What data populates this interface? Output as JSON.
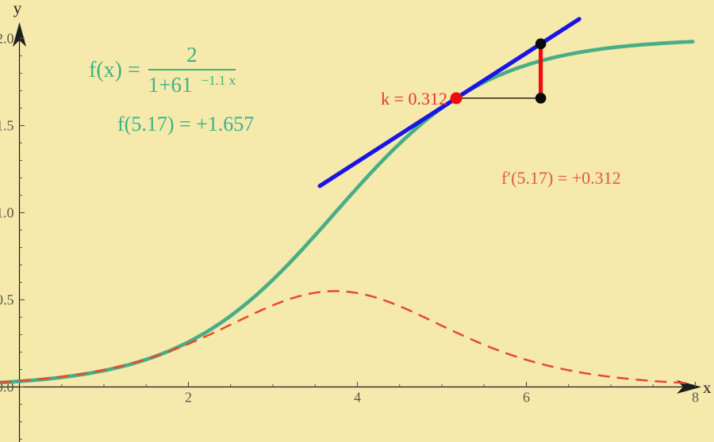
{
  "figure": {
    "background": "#f5e9ac",
    "axis_color": "#1d1d1d",
    "tick_label_color": "#59594e"
  },
  "chart_data": {
    "type": "line",
    "title": "",
    "xlabel": "x",
    "ylabel": "y",
    "xlim": [
      -0.23,
      8.22
    ],
    "ylim": [
      -0.32,
      2.08
    ],
    "grid": false,
    "legend": "none",
    "x_major_ticks": [
      2,
      4,
      6,
      8
    ],
    "x_major_tick_labels": [
      "2",
      "4",
      "6",
      "8"
    ],
    "x_minor_tick_step": 0.5,
    "y_major_ticks": [
      0,
      0.5,
      1,
      1.5,
      2
    ],
    "y_major_tick_labels": [
      "0.0",
      "0.5",
      "1.0",
      "1.5",
      "2.0"
    ],
    "y_minor_tick_step": 0.1,
    "series": [
      {
        "name": "logistic-function",
        "label": "f(x) = 2/(1+61^(-1.1 x))",
        "type": "logistic",
        "color": "#47ae87",
        "line_style": "solid",
        "line_width": 4.6,
        "params": {
          "L": 2,
          "k": 1.1,
          "x0": 3.737
        },
        "x_range": [
          -0.23,
          8.0
        ]
      },
      {
        "name": "derivative-curve",
        "label": "f'(x)",
        "type": "logistic-derivative",
        "color": "#e8492c",
        "line_style": "dashed",
        "line_width": 2.5,
        "params": {
          "L": 2,
          "k": 1.1,
          "x0": 3.737
        },
        "peak": {
          "x": 3.737,
          "y": 0.55
        },
        "x_range": [
          -0.23,
          8.0
        ]
      },
      {
        "name": "tangent-line",
        "type": "segment",
        "color": "#1a14e4",
        "line_style": "solid",
        "line_width": 5.2,
        "x_range": [
          3.555,
          6.625
        ],
        "through": {
          "x": 5.17,
          "y": 1.657
        },
        "slope": 0.312
      }
    ],
    "tangent_point": {
      "x": 5.17,
      "y": 1.657,
      "color": "#ee0d0d",
      "radius": 7.5
    },
    "slope_triangle": {
      "run": 1,
      "rise": 0.312,
      "base_color": "#111111",
      "riser_color": "#ee0d0d",
      "corner_color": "#0a0a0a",
      "dot_radius": 6.8
    }
  },
  "annotations": {
    "formula": {
      "lhs": "f(x) =",
      "numerator": "2",
      "denominator_base": "1+61",
      "denominator_exponent": "−1.1 x",
      "color": "#3cb28a"
    },
    "function_value": {
      "text": "f(5.17) = +1.657",
      "color": "#3cb28a"
    },
    "k_label": {
      "text": "k = 0.312",
      "color": "#ed3424"
    },
    "derivative_value": {
      "text": "f′(5.17) = +0.312",
      "color": "#e15940"
    }
  }
}
